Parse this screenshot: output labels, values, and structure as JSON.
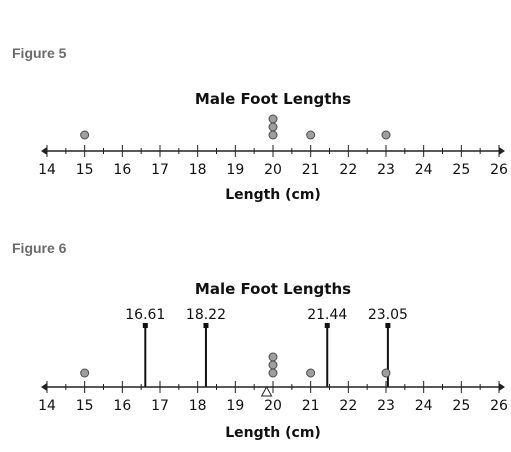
{
  "figures": [
    {
      "label": "Figure 5"
    },
    {
      "label": "Figure 6"
    }
  ],
  "chart_data": [
    {
      "type": "scatter",
      "subtype": "dot plot",
      "title": "Male Foot Lengths",
      "xlabel": "Length (cm)",
      "ylabel": "",
      "xlim": [
        14,
        26
      ],
      "tick_labels": [
        "14",
        "15",
        "16",
        "17",
        "18",
        "19",
        "20",
        "21",
        "22",
        "23",
        "24",
        "25",
        "26"
      ],
      "points": [
        {
          "x": 15,
          "count": 1
        },
        {
          "x": 20,
          "count": 3
        },
        {
          "x": 21,
          "count": 1
        },
        {
          "x": 23,
          "count": 1
        }
      ],
      "grid": false
    },
    {
      "type": "scatter",
      "subtype": "dot plot",
      "title": "Male Foot Lengths",
      "xlabel": "Length (cm)",
      "ylabel": "",
      "xlim": [
        14,
        26
      ],
      "tick_labels": [
        "14",
        "15",
        "16",
        "17",
        "18",
        "19",
        "20",
        "21",
        "22",
        "23",
        "24",
        "25",
        "26"
      ],
      "points": [
        {
          "x": 15,
          "count": 1
        },
        {
          "x": 20,
          "count": 3
        },
        {
          "x": 21,
          "count": 1
        },
        {
          "x": 23,
          "count": 1
        }
      ],
      "vertical_markers": [
        {
          "x": 16.61,
          "label": "16.61"
        },
        {
          "x": 18.22,
          "label": "18.22"
        },
        {
          "x": 21.44,
          "label": "21.44"
        },
        {
          "x": 23.05,
          "label": "23.05"
        }
      ],
      "balance_point": {
        "x": 19.83,
        "symbol": "triangle"
      },
      "grid": false
    }
  ]
}
